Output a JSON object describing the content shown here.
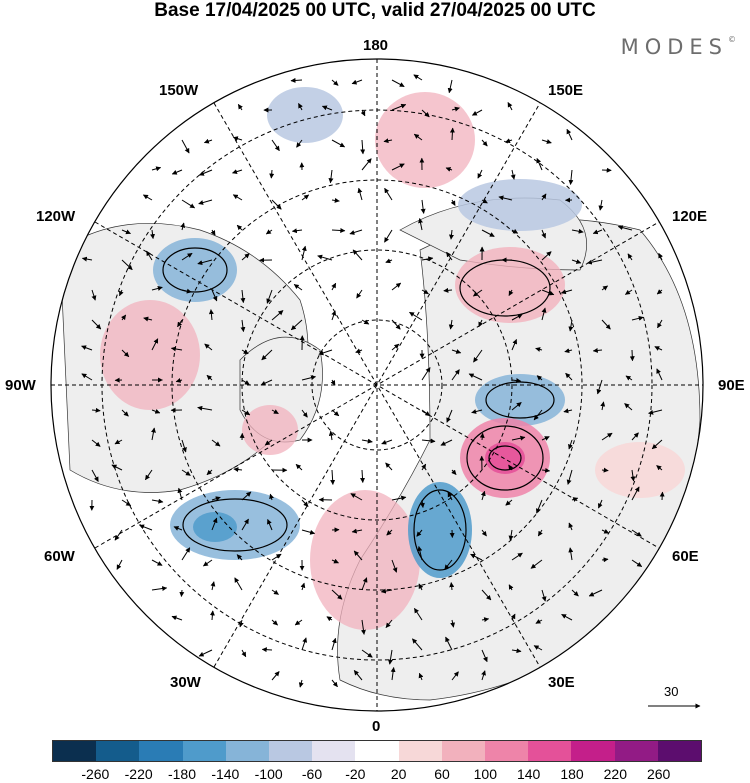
{
  "title": "Base 17/04/2025 00 UTC, valid 27/04/2025 00 UTC",
  "brand": "MODES",
  "brand_mark": "©",
  "longitude_labels": {
    "top": "180",
    "bottom": "0",
    "left": "90W",
    "right": "90E",
    "upper_left_1": "150W",
    "upper_left_2": "120W",
    "upper_right_1": "150E",
    "upper_right_2": "120E",
    "lower_left_1": "60W",
    "lower_left_2": "30W",
    "lower_right_1": "60E",
    "lower_right_2": "30E"
  },
  "vector_scale": {
    "value": "30",
    "icon": "arrow-right-icon"
  },
  "colorbar": {
    "colors": [
      "#0b2f4f",
      "#145c8c",
      "#2a7cb5",
      "#4f9bcb",
      "#86b4d8",
      "#b9c8e2",
      "#e4e2f0",
      "#ffffff",
      "#f7d8d8",
      "#f2b1bd",
      "#ee84a9",
      "#e45199",
      "#c41f8a",
      "#921b85",
      "#5c0d6e"
    ],
    "tick_labels": [
      "-260",
      "-220",
      "-180",
      "-140",
      "-100",
      "-60",
      "-20",
      "20",
      "60",
      "100",
      "140",
      "180",
      "220",
      "260"
    ]
  },
  "map_colors": {
    "land": "#eeeeee",
    "ocean": "#ffffff",
    "positive_anomaly": "#f2b1bd",
    "negative_anomaly": "#86b4d8"
  }
}
